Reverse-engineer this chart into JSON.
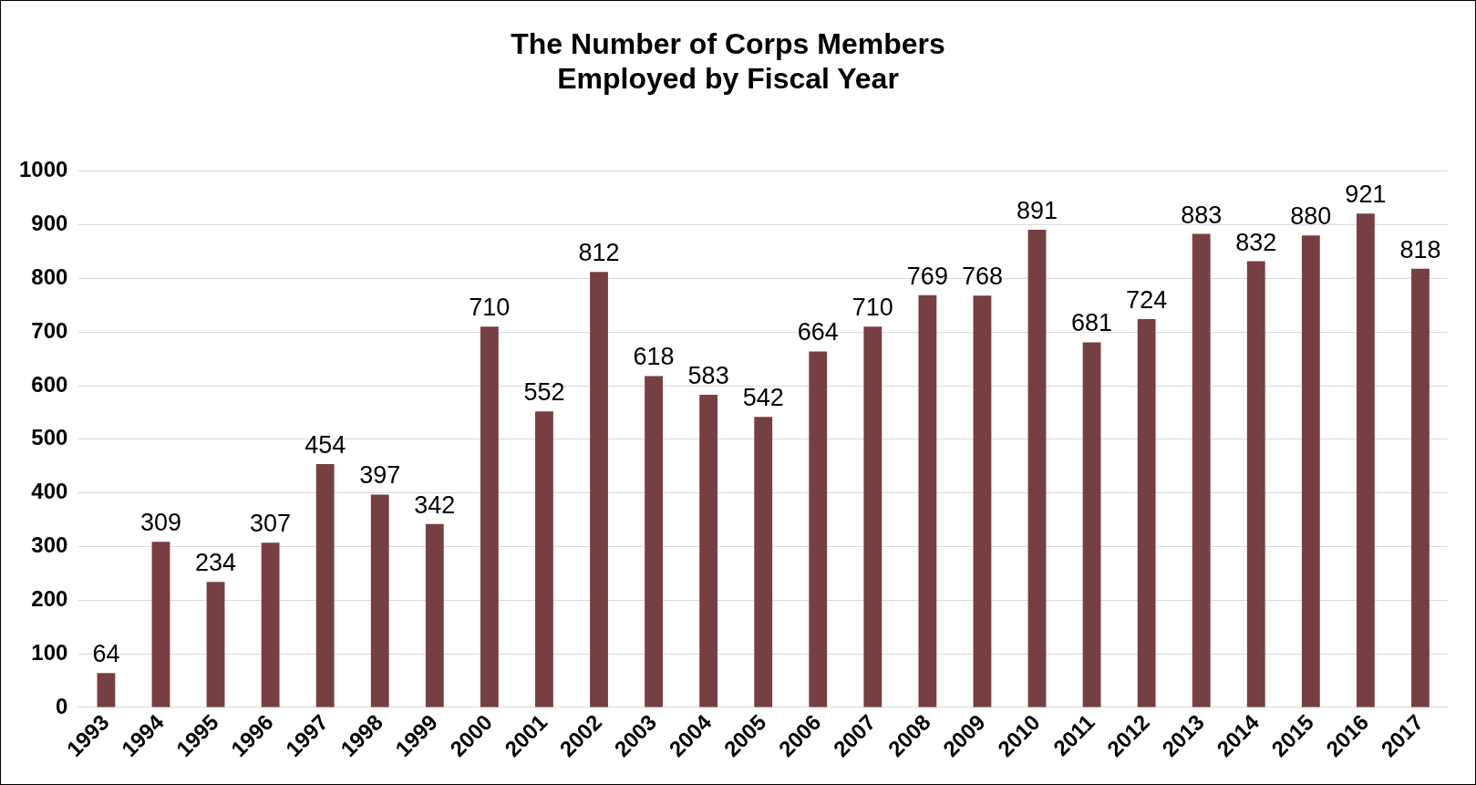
{
  "chart_data": {
    "type": "bar",
    "title": "The Number of Corps Members\nEmployed by Fiscal Year",
    "categories": [
      "1993",
      "1994",
      "1995",
      "1996",
      "1997",
      "1998",
      "1999",
      "2000",
      "2001",
      "2002",
      "2003",
      "2004",
      "2005",
      "2006",
      "2007",
      "2008",
      "2009",
      "2010",
      "2011",
      "2012",
      "2013",
      "2014",
      "2015",
      "2016",
      "2017"
    ],
    "values": [
      64,
      309,
      234,
      307,
      454,
      397,
      342,
      710,
      552,
      812,
      618,
      583,
      542,
      664,
      710,
      769,
      768,
      891,
      681,
      724,
      883,
      832,
      880,
      921,
      818
    ],
    "color": "#763f41",
    "ylim": [
      0,
      1000
    ],
    "yticks": [
      0,
      100,
      200,
      300,
      400,
      500,
      600,
      700,
      800,
      900,
      1000
    ],
    "grid": "y",
    "data_labels": true,
    "legend": false
  }
}
